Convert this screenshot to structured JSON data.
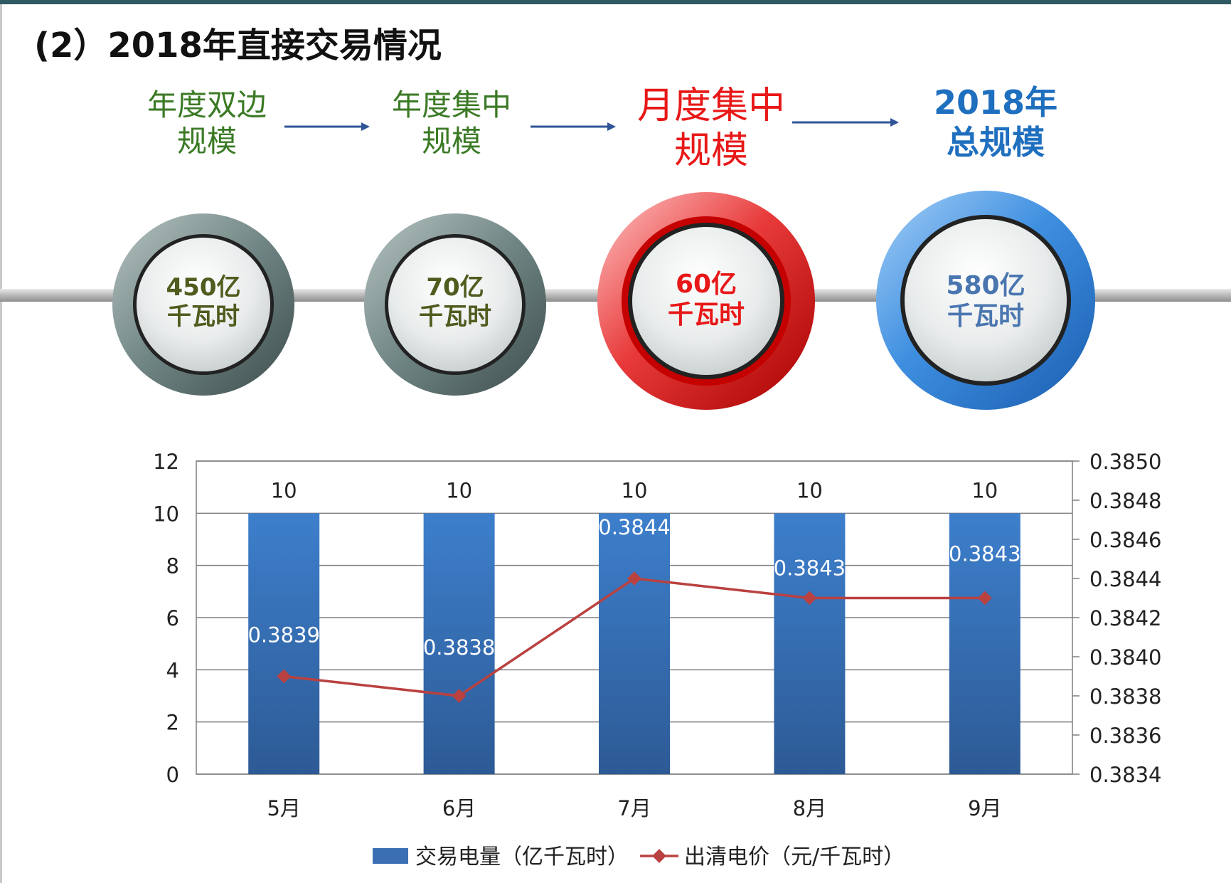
{
  "title": "(2）2018年直接交易情况",
  "steps": [
    {
      "label": "年度双边\n规模",
      "value": "450亿\n千瓦时"
    },
    {
      "label": "年度集中\n规模",
      "value": "70亿\n千瓦时"
    },
    {
      "label": "月度集中\n规模",
      "value": "60亿\n千瓦时"
    },
    {
      "label": "2018年\n总规模",
      "value": "580亿\n千瓦时"
    }
  ],
  "colors": {
    "green_text": "#3b7a25",
    "red_text": "#e81818",
    "blue_text": "#1f6fbf",
    "value_green": "#4e5c1e",
    "value_blue": "#4a76b0",
    "bar": "#3a6fb3",
    "line": "#b94140"
  },
  "chart_data": {
    "type": "bar",
    "categories": [
      "5月",
      "6月",
      "7月",
      "8月",
      "9月"
    ],
    "series": [
      {
        "name": "交易电量（亿千瓦时）",
        "type": "bar",
        "axis": "left",
        "values": [
          10,
          10,
          10,
          10,
          10
        ]
      },
      {
        "name": "出清电价（元/千瓦时）",
        "type": "line",
        "axis": "right",
        "values": [
          0.3839,
          0.3838,
          0.3844,
          0.3843,
          0.3843
        ]
      }
    ],
    "bar_labels": [
      "10",
      "10",
      "10",
      "10",
      "10"
    ],
    "line_labels": [
      "0.3839",
      "0.3838",
      "0.3844",
      "0.3843",
      "0.3843"
    ],
    "y_left": {
      "min": 0,
      "max": 12,
      "ticks": [
        "0",
        "2",
        "4",
        "6",
        "8",
        "10",
        "12"
      ]
    },
    "y_right": {
      "min": 0.3834,
      "max": 0.385,
      "ticks": [
        "0.3834",
        "0.3836",
        "0.3838",
        "0.3840",
        "0.3842",
        "0.3844",
        "0.3846",
        "0.3848",
        "0.3850"
      ]
    },
    "grid": true,
    "legend_position": "bottom"
  }
}
